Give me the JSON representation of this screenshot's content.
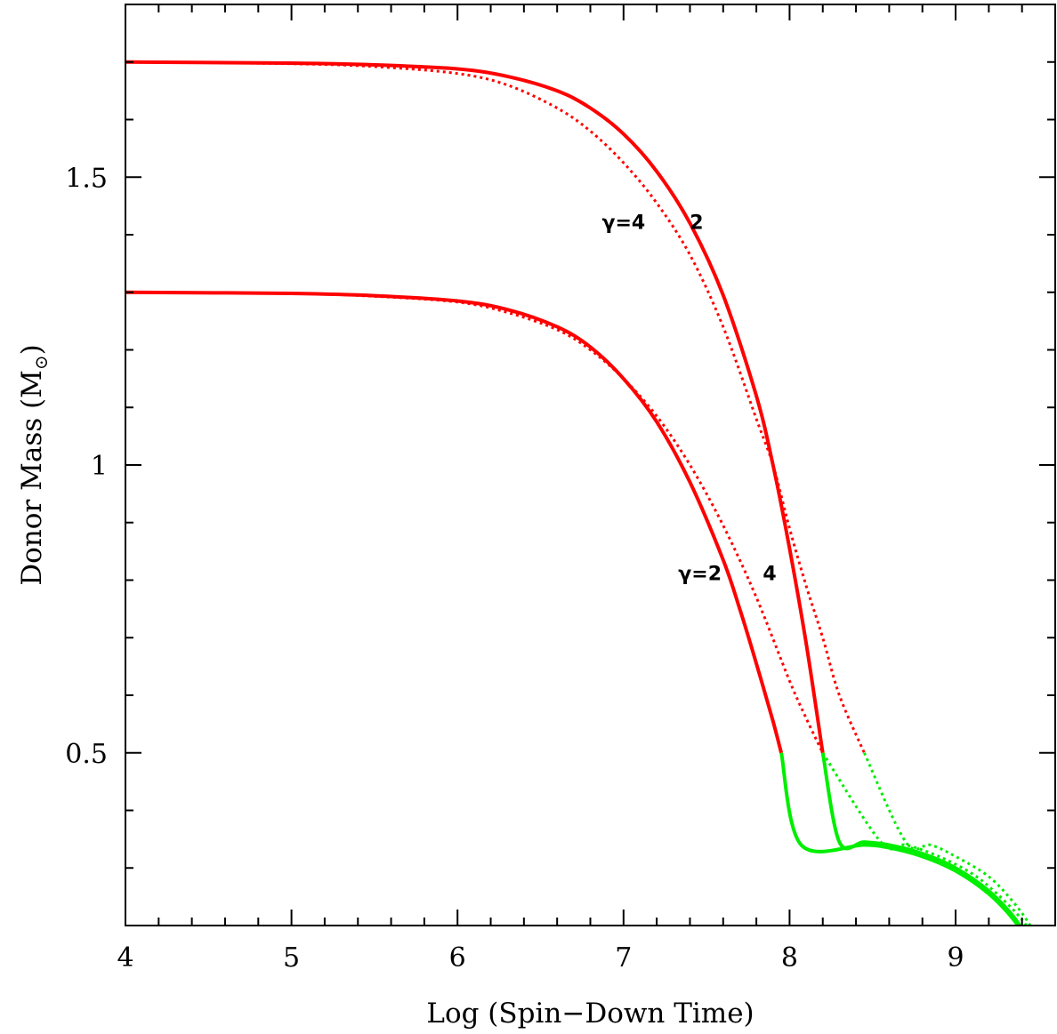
{
  "chart_data": {
    "type": "line",
    "xlabel": "Log (Spin−Down Time)",
    "ylabel_main": "Donor Mass (M",
    "ylabel_sub": "⊙",
    "ylabel_end": ")",
    "xlim": [
      4,
      9.6
    ],
    "ylim": [
      0.2,
      1.8
    ],
    "x_ticks": [
      4,
      5,
      6,
      7,
      8,
      9
    ],
    "x_tick_labels": [
      "4",
      "5",
      "6",
      "7",
      "8",
      "9"
    ],
    "y_ticks": [
      0.5,
      1,
      1.5
    ],
    "y_tick_labels": [
      "0.5",
      "1",
      "1.5"
    ],
    "x_minor_step": 0.2,
    "y_minor_step": 0.1,
    "grid": false,
    "colors": {
      "phase1": "#ff0000",
      "phase2": "#00ee00"
    },
    "series": [
      {
        "mass": "1.7",
        "gamma": "2",
        "style": "solid",
        "phase1": [
          [
            4.0,
            1.7
          ],
          [
            5.0,
            1.698
          ],
          [
            5.5,
            1.695
          ],
          [
            6.0,
            1.688
          ],
          [
            6.3,
            1.675
          ],
          [
            6.6,
            1.65
          ],
          [
            6.8,
            1.62
          ],
          [
            7.0,
            1.575
          ],
          [
            7.2,
            1.51
          ],
          [
            7.4,
            1.42
          ],
          [
            7.6,
            1.295
          ],
          [
            7.8,
            1.12
          ],
          [
            7.9,
            1.0
          ],
          [
            8.0,
            0.855
          ],
          [
            8.1,
            0.69
          ],
          [
            8.2,
            0.5
          ]
        ],
        "phase2": [
          [
            8.2,
            0.5
          ],
          [
            8.3,
            0.345
          ],
          [
            8.45,
            0.345
          ],
          [
            8.6,
            0.34
          ],
          [
            8.8,
            0.325
          ],
          [
            9.0,
            0.3
          ],
          [
            9.2,
            0.26
          ],
          [
            9.35,
            0.215
          ],
          [
            9.45,
            0.17
          ],
          [
            9.52,
            0.13
          ]
        ]
      },
      {
        "mass": "1.7",
        "gamma": "4",
        "style": "dotted",
        "phase1": [
          [
            4.0,
            1.7
          ],
          [
            5.0,
            1.697
          ],
          [
            5.5,
            1.692
          ],
          [
            6.0,
            1.68
          ],
          [
            6.3,
            1.66
          ],
          [
            6.6,
            1.62
          ],
          [
            6.8,
            1.58
          ],
          [
            7.0,
            1.525
          ],
          [
            7.2,
            1.455
          ],
          [
            7.4,
            1.365
          ],
          [
            7.6,
            1.24
          ],
          [
            7.8,
            1.08
          ],
          [
            7.9,
            1.0
          ],
          [
            8.0,
            0.89
          ],
          [
            8.1,
            0.79
          ],
          [
            8.2,
            0.7
          ],
          [
            8.3,
            0.6
          ],
          [
            8.45,
            0.5
          ]
        ],
        "phase2": [
          [
            8.45,
            0.5
          ],
          [
            8.7,
            0.345
          ],
          [
            8.85,
            0.34
          ],
          [
            9.0,
            0.32
          ],
          [
            9.2,
            0.285
          ],
          [
            9.35,
            0.24
          ],
          [
            9.45,
            0.2
          ],
          [
            9.55,
            0.15
          ],
          [
            9.58,
            0.13
          ]
        ]
      },
      {
        "mass": "1.3",
        "gamma": "2",
        "style": "solid",
        "phase1": [
          [
            4.0,
            1.3
          ],
          [
            5.0,
            1.298
          ],
          [
            5.5,
            1.294
          ],
          [
            6.0,
            1.285
          ],
          [
            6.3,
            1.27
          ],
          [
            6.6,
            1.24
          ],
          [
            6.8,
            1.205
          ],
          [
            7.0,
            1.15
          ],
          [
            7.2,
            1.075
          ],
          [
            7.4,
            0.97
          ],
          [
            7.6,
            0.835
          ],
          [
            7.7,
            0.75
          ],
          [
            7.8,
            0.655
          ],
          [
            7.9,
            0.555
          ],
          [
            7.95,
            0.5
          ]
        ],
        "phase2": [
          [
            7.95,
            0.5
          ],
          [
            8.07,
            0.34
          ],
          [
            8.45,
            0.34
          ],
          [
            8.6,
            0.335
          ],
          [
            8.8,
            0.32
          ],
          [
            9.0,
            0.295
          ],
          [
            9.2,
            0.255
          ],
          [
            9.35,
            0.21
          ],
          [
            9.45,
            0.165
          ],
          [
            9.5,
            0.13
          ]
        ]
      },
      {
        "mass": "1.3",
        "gamma": "4",
        "style": "dotted",
        "phase1": [
          [
            4.0,
            1.3
          ],
          [
            5.0,
            1.298
          ],
          [
            5.5,
            1.293
          ],
          [
            6.0,
            1.283
          ],
          [
            6.3,
            1.265
          ],
          [
            6.6,
            1.235
          ],
          [
            6.8,
            1.2
          ],
          [
            7.0,
            1.15
          ],
          [
            7.2,
            1.085
          ],
          [
            7.4,
            1.0
          ],
          [
            7.6,
            0.895
          ],
          [
            7.8,
            0.77
          ],
          [
            8.0,
            0.625
          ],
          [
            8.1,
            0.56
          ],
          [
            8.2,
            0.5
          ]
        ],
        "phase2": [
          [
            8.2,
            0.5
          ],
          [
            8.55,
            0.345
          ],
          [
            8.7,
            0.34
          ],
          [
            8.9,
            0.32
          ],
          [
            9.1,
            0.29
          ],
          [
            9.25,
            0.255
          ],
          [
            9.4,
            0.21
          ],
          [
            9.5,
            0.165
          ],
          [
            9.56,
            0.13
          ]
        ]
      }
    ],
    "annotations": [
      {
        "text": "γ=4",
        "x": 7.0,
        "y": 1.41
      },
      {
        "text": "2",
        "x": 7.44,
        "y": 1.41
      },
      {
        "text": "γ=2",
        "x": 7.46,
        "y": 0.8
      },
      {
        "text": "4",
        "x": 7.88,
        "y": 0.8
      }
    ]
  }
}
